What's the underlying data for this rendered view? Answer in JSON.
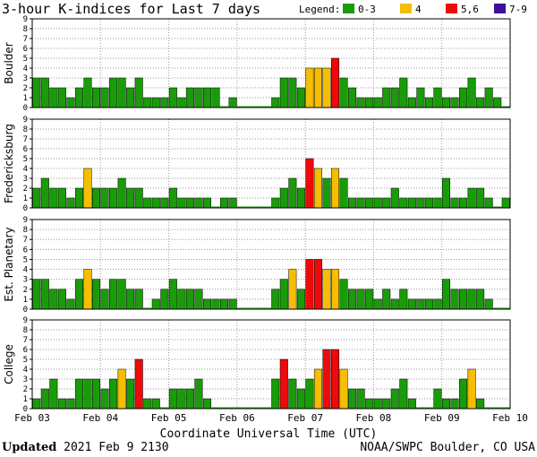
{
  "header": {
    "title": "3-hour K-indices for Last 7 days",
    "legend_label": "Legend:",
    "legend": [
      {
        "label": "0-3",
        "color": "#1a9b0a"
      },
      {
        "label": "4",
        "color": "#f5be00"
      },
      {
        "label": "5,6",
        "color": "#ee0a0a"
      },
      {
        "label": "7-9",
        "color": "#3f0f9e"
      }
    ]
  },
  "footer": {
    "updated_label": "Updated",
    "updated_value": "2021 Feb  9 2130",
    "credit": "NOAA/SWPC Boulder, CO USA"
  },
  "chart_data": {
    "type": "bar",
    "x_ticks": [
      "Feb 03",
      "Feb 04",
      "Feb 05",
      "Feb 06",
      "Feb 07",
      "Feb 08",
      "Feb 09",
      "Feb 10"
    ],
    "xlabel": "Coordinate Universal Time (UTC)",
    "ylim": [
      0,
      9
    ],
    "y_ticks": [
      0,
      1,
      2,
      3,
      4,
      5,
      6,
      7,
      8,
      9
    ],
    "bins_per_day": 8,
    "series": [
      {
        "name": "Boulder",
        "values": [
          3,
          3,
          2,
          2,
          1,
          2,
          3,
          2,
          2,
          3,
          3,
          2,
          3,
          1,
          1,
          1,
          2,
          1,
          2,
          2,
          2,
          2,
          0,
          1,
          0,
          0,
          0,
          0,
          1,
          3,
          3,
          2,
          4,
          4,
          4,
          5,
          3,
          2,
          1,
          1,
          1,
          2,
          2,
          3,
          1,
          2,
          1,
          2,
          1,
          1,
          2,
          3,
          1,
          2,
          1,
          0
        ]
      },
      {
        "name": "Fredericksburg",
        "values": [
          2,
          3,
          2,
          2,
          1,
          2,
          4,
          2,
          2,
          2,
          3,
          2,
          2,
          1,
          1,
          1,
          2,
          1,
          1,
          1,
          1,
          0,
          1,
          1,
          0,
          0,
          0,
          0,
          1,
          2,
          3,
          2,
          5,
          4,
          3,
          4,
          3,
          1,
          1,
          1,
          1,
          1,
          2,
          1,
          1,
          1,
          1,
          1,
          3,
          1,
          1,
          2,
          2,
          1,
          0,
          1
        ]
      },
      {
        "name": "Est. Planetary",
        "values": [
          3,
          3,
          2,
          2,
          1,
          3,
          4,
          3,
          2,
          3,
          3,
          2,
          2,
          0,
          1,
          2,
          3,
          2,
          2,
          2,
          1,
          1,
          1,
          1,
          0,
          0,
          0,
          0,
          2,
          3,
          4,
          2,
          5,
          5,
          4,
          4,
          3,
          2,
          2,
          2,
          1,
          2,
          1,
          2,
          1,
          1,
          1,
          1,
          3,
          2,
          2,
          2,
          2,
          1,
          0,
          0
        ]
      },
      {
        "name": "College",
        "values": [
          1,
          2,
          3,
          1,
          1,
          3,
          3,
          3,
          2,
          3,
          4,
          3,
          5,
          1,
          1,
          0,
          2,
          2,
          2,
          3,
          1,
          0,
          0,
          0,
          0,
          0,
          0,
          0,
          3,
          5,
          3,
          2,
          3,
          4,
          6,
          6,
          4,
          2,
          2,
          1,
          1,
          1,
          2,
          3,
          1,
          0,
          0,
          2,
          1,
          1,
          3,
          4,
          1,
          0,
          0,
          0
        ]
      }
    ]
  }
}
